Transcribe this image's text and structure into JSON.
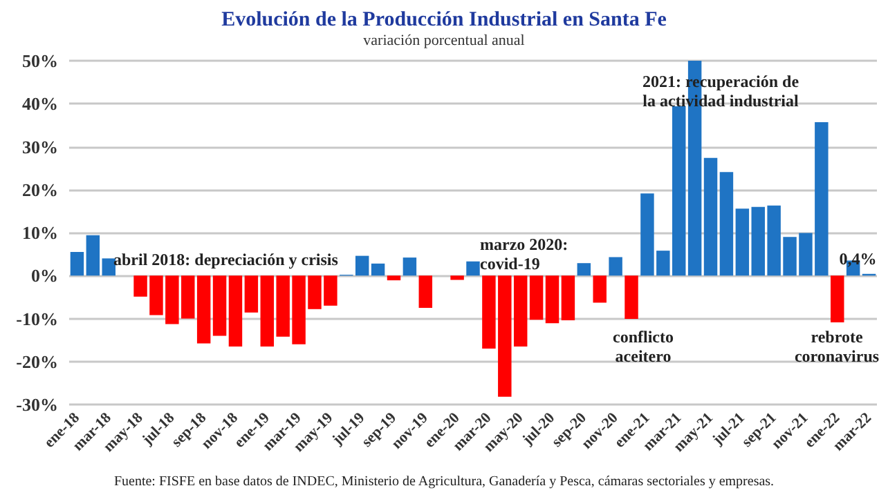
{
  "chart_data": {
    "type": "bar",
    "title": "Evolución de la Producción Industrial en Santa Fe",
    "subtitle": "variación porcentual anual",
    "categories": [
      "ene-18",
      null,
      "mar-18",
      null,
      "may-18",
      null,
      "jul-18",
      null,
      "sep-18",
      null,
      "nov-18",
      null,
      "ene-19",
      null,
      "mar-19",
      null,
      "may-19",
      null,
      "jul-19",
      null,
      "sep-19",
      null,
      "nov-19",
      null,
      "ene-20",
      null,
      "mar-20",
      null,
      "may-20",
      null,
      "jul-20",
      null,
      "sep-20",
      null,
      "nov-20",
      null,
      "ene-21",
      null,
      "mar-21",
      null,
      "may-21",
      null,
      "jul-21",
      null,
      "sep-21",
      null,
      "nov-21",
      null,
      "ene-22",
      null,
      "mar-22"
    ],
    "values": [
      5.5,
      9.4,
      4.0,
      0,
      -4.9,
      -9.2,
      -11.3,
      -10.0,
      -15.8,
      -14.0,
      -16.5,
      -8.6,
      -16.5,
      -14.2,
      -16.0,
      -7.8,
      -7.0,
      0.2,
      4.6,
      2.8,
      -1.1,
      4.2,
      -7.5,
      0,
      -1.0,
      3.3,
      -17.0,
      -28.2,
      -16.5,
      -10.3,
      -11.1,
      -10.4,
      2.9,
      -6.3,
      4.3,
      -10.1,
      19.1,
      5.8,
      39.4,
      50.0,
      27.4,
      24.1,
      15.6,
      16.0,
      16.3,
      9.0,
      9.9,
      35.7,
      -10.9,
      3.5,
      0.4
    ],
    "colors": [
      "#1f74c4",
      "#1f74c4",
      "#1f74c4",
      "#1f74c4",
      "#ff0000",
      "#ff0000",
      "#ff0000",
      "#ff0000",
      "#ff0000",
      "#ff0000",
      "#ff0000",
      "#ff0000",
      "#ff0000",
      "#ff0000",
      "#ff0000",
      "#ff0000",
      "#ff0000",
      "#1f74c4",
      "#1f74c4",
      "#1f74c4",
      "#ff0000",
      "#1f74c4",
      "#ff0000",
      "#ff0000",
      "#ff0000",
      "#1f74c4",
      "#ff0000",
      "#ff0000",
      "#ff0000",
      "#ff0000",
      "#ff0000",
      "#ff0000",
      "#1f74c4",
      "#ff0000",
      "#1f74c4",
      "#ff0000",
      "#1f74c4",
      "#1f74c4",
      "#1f74c4",
      "#1f74c4",
      "#1f74c4",
      "#1f74c4",
      "#1f74c4",
      "#1f74c4",
      "#1f74c4",
      "#1f74c4",
      "#1f74c4",
      "#1f74c4",
      "#ff0000",
      "#1f74c4",
      "#1f74c4"
    ],
    "value_labels": [
      null,
      null,
      null,
      null,
      null,
      null,
      null,
      null,
      null,
      null,
      null,
      null,
      null,
      null,
      null,
      null,
      null,
      null,
      null,
      null,
      null,
      null,
      null,
      null,
      null,
      null,
      null,
      null,
      null,
      null,
      null,
      null,
      null,
      null,
      null,
      null,
      null,
      null,
      null,
      null,
      null,
      null,
      null,
      null,
      null,
      null,
      null,
      null,
      null,
      null,
      "0,4%"
    ],
    "ylim": [
      -30,
      50
    ],
    "yticks": [
      {
        "value": -30,
        "label": "-30%"
      },
      {
        "value": -20,
        "label": "-20%"
      },
      {
        "value": -10,
        "label": "-10%"
      },
      {
        "value": 0,
        "label": "0%"
      },
      {
        "value": 10,
        "label": "10%"
      },
      {
        "value": 20,
        "label": "20%"
      },
      {
        "value": 30,
        "label": "30%"
      },
      {
        "value": 40,
        "label": "40%"
      },
      {
        "value": 50,
        "label": "50%"
      }
    ],
    "grid": "y",
    "annotations": [
      "abril 2018: depreciación y crisis",
      "marzo 2020:\ncovid-19",
      "conflicto\naceitero",
      "2021: recuperación de\nla actividad industrial",
      "rebrote\ncoronavirus",
      "Fuente: FISFE en base datos de INDEC, Ministerio de Agricultura, Ganadería y Pesca, cámaras sectoriales y empresas."
    ]
  }
}
